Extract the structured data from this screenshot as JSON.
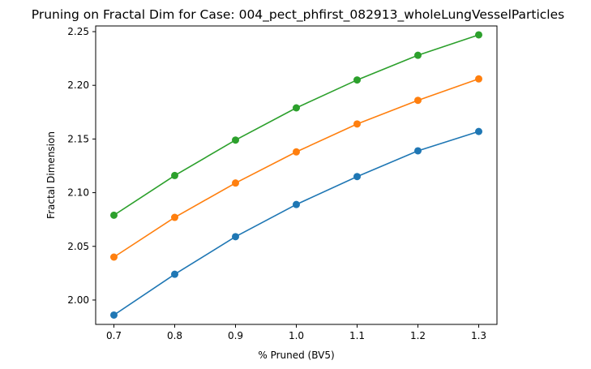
{
  "chart_data": {
    "type": "line",
    "title": "Pruning on Fractal Dim for Case: 004_pect_phfirst_082913_wholeLungVesselParticles",
    "xlabel": "% Pruned (BV5)",
    "ylabel": "Fractal Dimension",
    "x": [
      0.7,
      0.8,
      0.9,
      1.0,
      1.1,
      1.2,
      1.3
    ],
    "xticks": [
      "0.7",
      "0.8",
      "0.9",
      "1.0",
      "1.1",
      "1.2",
      "1.3"
    ],
    "yticks": [
      "2.00",
      "2.05",
      "2.10",
      "2.15",
      "2.20",
      "2.25"
    ],
    "xlim": [
      0.67,
      1.33
    ],
    "ylim": [
      1.9773,
      2.2553
    ],
    "grid": false,
    "marker": "circle",
    "series": [
      {
        "color": "#1f77b4",
        "values": [
          1.986,
          2.024,
          2.059,
          2.089,
          2.115,
          2.139,
          2.157
        ]
      },
      {
        "color": "#ff7f0e",
        "values": [
          2.04,
          2.077,
          2.109,
          2.138,
          2.164,
          2.186,
          2.206
        ]
      },
      {
        "color": "#2ca02c",
        "values": [
          2.079,
          2.116,
          2.149,
          2.179,
          2.205,
          2.228,
          2.247
        ]
      }
    ]
  }
}
